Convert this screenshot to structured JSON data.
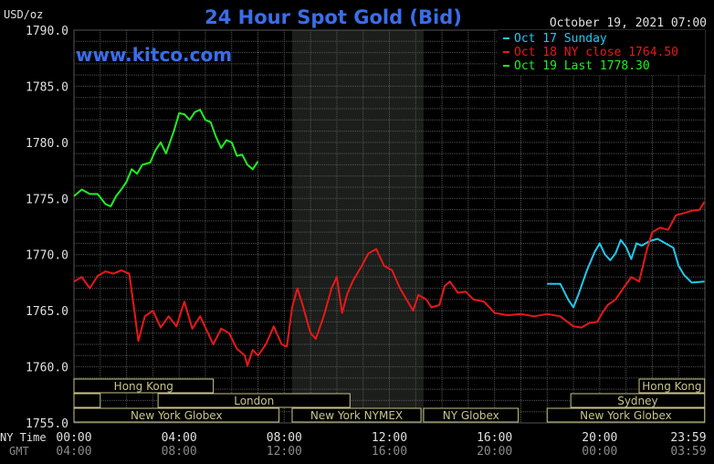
{
  "header": {
    "title": "24 Hour Spot Gold (Bid)",
    "unit": "USD/oz",
    "timestamp": "October 19, 2021 07:00",
    "watermark": "www.kitco.com"
  },
  "colors": {
    "background": "#000000",
    "grid": "#555555",
    "title": "#3a6ee8",
    "watermark": "#3a6ee8",
    "text": "#e0e0e0",
    "dim_text": "#8a8a8a",
    "session_box": "#c8c48a",
    "shade": "#1b1e1b"
  },
  "chart_data": {
    "type": "line",
    "title": "24 Hour Spot Gold (Bid)",
    "ylabel": "USD/oz",
    "ylim": [
      1755,
      1790
    ],
    "yticks": [
      "1790.0",
      "1785.0",
      "1780.0",
      "1775.0",
      "1770.0",
      "1765.0",
      "1760.0",
      "1755.0"
    ],
    "xlim": [
      0,
      24
    ],
    "xtick_hours": [
      0,
      4,
      8,
      12,
      16,
      20,
      24
    ],
    "xrow_labels": [
      "NY Time",
      "GMT"
    ],
    "xticks_ny": [
      "00:00",
      "04:00",
      "08:00",
      "12:00",
      "16:00",
      "20:00",
      "23:59"
    ],
    "xticks_gmt": [
      "04:00",
      "08:00",
      "12:00",
      "16:00",
      "20:00",
      "00:00",
      "03:59"
    ],
    "shaded_hours": [
      8.3,
      13.3
    ],
    "legend": [
      {
        "label": "Oct 17 Sunday",
        "color": "#22c8f0"
      },
      {
        "label": "Oct 18 NY close 1764.50",
        "color": "#e81818"
      },
      {
        "label": "Oct 19 Last 1778.30",
        "color": "#22ee22"
      }
    ],
    "series": [
      {
        "name": "Oct 17 Sunday",
        "color": "#22c8f0",
        "points": [
          [
            18,
            1767.4
          ],
          [
            18.5,
            1767.4
          ],
          [
            18.8,
            1766.0
          ],
          [
            19.0,
            1765.3
          ],
          [
            19.2,
            1766.5
          ],
          [
            19.5,
            1768.5
          ],
          [
            19.8,
            1770.2
          ],
          [
            20.0,
            1771.0
          ],
          [
            20.2,
            1770.0
          ],
          [
            20.4,
            1769.5
          ],
          [
            20.6,
            1770.1
          ],
          [
            20.8,
            1771.3
          ],
          [
            21.0,
            1770.7
          ],
          [
            21.2,
            1769.6
          ],
          [
            21.4,
            1771.0
          ],
          [
            21.6,
            1770.8
          ],
          [
            21.9,
            1771.2
          ],
          [
            22.2,
            1771.4
          ],
          [
            22.5,
            1771.0
          ],
          [
            22.8,
            1770.6
          ],
          [
            23.0,
            1769.0
          ],
          [
            23.2,
            1768.2
          ],
          [
            23.5,
            1767.5
          ],
          [
            23.98,
            1767.6
          ]
        ]
      },
      {
        "name": "Oct 18 NY close 1764.50",
        "color": "#e81818",
        "points": [
          [
            0,
            1767.6
          ],
          [
            0.3,
            1768.0
          ],
          [
            0.6,
            1767.0
          ],
          [
            0.9,
            1768.1
          ],
          [
            1.2,
            1768.5
          ],
          [
            1.5,
            1768.3
          ],
          [
            1.8,
            1768.6
          ],
          [
            2.1,
            1768.3
          ],
          [
            2.3,
            1765.0
          ],
          [
            2.45,
            1762.3
          ],
          [
            2.7,
            1764.5
          ],
          [
            3.0,
            1765.0
          ],
          [
            3.3,
            1763.5
          ],
          [
            3.6,
            1764.5
          ],
          [
            3.9,
            1763.6
          ],
          [
            4.2,
            1765.8
          ],
          [
            4.5,
            1763.4
          ],
          [
            4.8,
            1764.5
          ],
          [
            5.1,
            1763.0
          ],
          [
            5.3,
            1762.0
          ],
          [
            5.6,
            1763.4
          ],
          [
            5.9,
            1763.0
          ],
          [
            6.2,
            1761.6
          ],
          [
            6.5,
            1761.0
          ],
          [
            6.6,
            1760.1
          ],
          [
            6.8,
            1761.5
          ],
          [
            7.0,
            1761.0
          ],
          [
            7.3,
            1762.0
          ],
          [
            7.6,
            1763.6
          ],
          [
            7.9,
            1762.0
          ],
          [
            8.1,
            1761.8
          ],
          [
            8.3,
            1765.3
          ],
          [
            8.5,
            1767.0
          ],
          [
            8.7,
            1765.5
          ],
          [
            9.0,
            1763.0
          ],
          [
            9.2,
            1762.5
          ],
          [
            9.5,
            1764.5
          ],
          [
            9.8,
            1767.0
          ],
          [
            10.0,
            1768.0
          ],
          [
            10.2,
            1764.8
          ],
          [
            10.4,
            1766.5
          ],
          [
            10.6,
            1767.6
          ],
          [
            10.9,
            1768.8
          ],
          [
            11.2,
            1770.1
          ],
          [
            11.5,
            1770.5
          ],
          [
            11.8,
            1769.0
          ],
          [
            12.1,
            1768.6
          ],
          [
            12.4,
            1767.0
          ],
          [
            12.7,
            1765.8
          ],
          [
            12.9,
            1765.0
          ],
          [
            13.1,
            1766.4
          ],
          [
            13.4,
            1766.0
          ],
          [
            13.6,
            1765.3
          ],
          [
            13.9,
            1765.5
          ],
          [
            14.1,
            1767.2
          ],
          [
            14.3,
            1767.6
          ],
          [
            14.6,
            1766.6
          ],
          [
            14.9,
            1766.7
          ],
          [
            15.2,
            1766.0
          ],
          [
            15.6,
            1765.8
          ],
          [
            16.0,
            1764.8
          ],
          [
            16.5,
            1764.6
          ],
          [
            17.0,
            1764.7
          ],
          [
            17.5,
            1764.5
          ],
          [
            18.0,
            1764.7
          ],
          [
            18.5,
            1764.5
          ],
          [
            19.0,
            1763.6
          ],
          [
            19.3,
            1763.5
          ],
          [
            19.6,
            1763.9
          ],
          [
            19.9,
            1764.0
          ],
          [
            20.1,
            1764.8
          ],
          [
            20.3,
            1765.5
          ],
          [
            20.6,
            1766.0
          ],
          [
            20.9,
            1767.0
          ],
          [
            21.2,
            1768.0
          ],
          [
            21.5,
            1767.6
          ],
          [
            21.8,
            1770.5
          ],
          [
            22.0,
            1772.0
          ],
          [
            22.3,
            1772.4
          ],
          [
            22.6,
            1772.2
          ],
          [
            22.9,
            1773.5
          ],
          [
            23.2,
            1773.7
          ],
          [
            23.5,
            1773.9
          ],
          [
            23.8,
            1774.0
          ],
          [
            23.98,
            1774.7
          ]
        ]
      },
      {
        "name": "Oct 19 Last 1778.30",
        "color": "#22ee22",
        "points": [
          [
            0,
            1775.2
          ],
          [
            0.3,
            1775.8
          ],
          [
            0.6,
            1775.4
          ],
          [
            0.9,
            1775.4
          ],
          [
            1.2,
            1774.5
          ],
          [
            1.4,
            1774.3
          ],
          [
            1.6,
            1775.2
          ],
          [
            1.8,
            1775.8
          ],
          [
            2.0,
            1776.5
          ],
          [
            2.2,
            1777.6
          ],
          [
            2.4,
            1777.2
          ],
          [
            2.6,
            1778.0
          ],
          [
            2.9,
            1778.2
          ],
          [
            3.1,
            1779.3
          ],
          [
            3.3,
            1780.0
          ],
          [
            3.5,
            1779.0
          ],
          [
            3.8,
            1781.0
          ],
          [
            4.0,
            1782.6
          ],
          [
            4.2,
            1782.5
          ],
          [
            4.4,
            1782.0
          ],
          [
            4.6,
            1782.7
          ],
          [
            4.8,
            1782.9
          ],
          [
            5.0,
            1782.0
          ],
          [
            5.2,
            1781.8
          ],
          [
            5.4,
            1780.5
          ],
          [
            5.6,
            1779.5
          ],
          [
            5.8,
            1780.2
          ],
          [
            6.0,
            1780.0
          ],
          [
            6.2,
            1778.8
          ],
          [
            6.4,
            1778.9
          ],
          [
            6.6,
            1778.0
          ],
          [
            6.8,
            1777.6
          ],
          [
            7.0,
            1778.3
          ]
        ]
      }
    ]
  },
  "sessions": [
    {
      "name": "Hong Kong",
      "start": 0,
      "end": 5.3,
      "row": 0
    },
    {
      "name": "",
      "start": 0,
      "end": 1.0,
      "row": 1
    },
    {
      "name": "London",
      "start": 3.2,
      "end": 10.5,
      "row": 1
    },
    {
      "name": "New York Globex",
      "start": 0,
      "end": 7.8,
      "row": 2
    },
    {
      "name": "New York NYMEX",
      "start": 8.3,
      "end": 13.2,
      "row": 2
    },
    {
      "name": "NY Globex",
      "start": 13.3,
      "end": 16.9,
      "row": 2
    },
    {
      "name": "Hong Kong",
      "start": 21.5,
      "end": 23.99,
      "row": 0
    },
    {
      "name": "Sydney",
      "start": 18.9,
      "end": 23.99,
      "row": 1
    },
    {
      "name": "New York Globex",
      "start": 18.0,
      "end": 23.99,
      "row": 2
    }
  ]
}
